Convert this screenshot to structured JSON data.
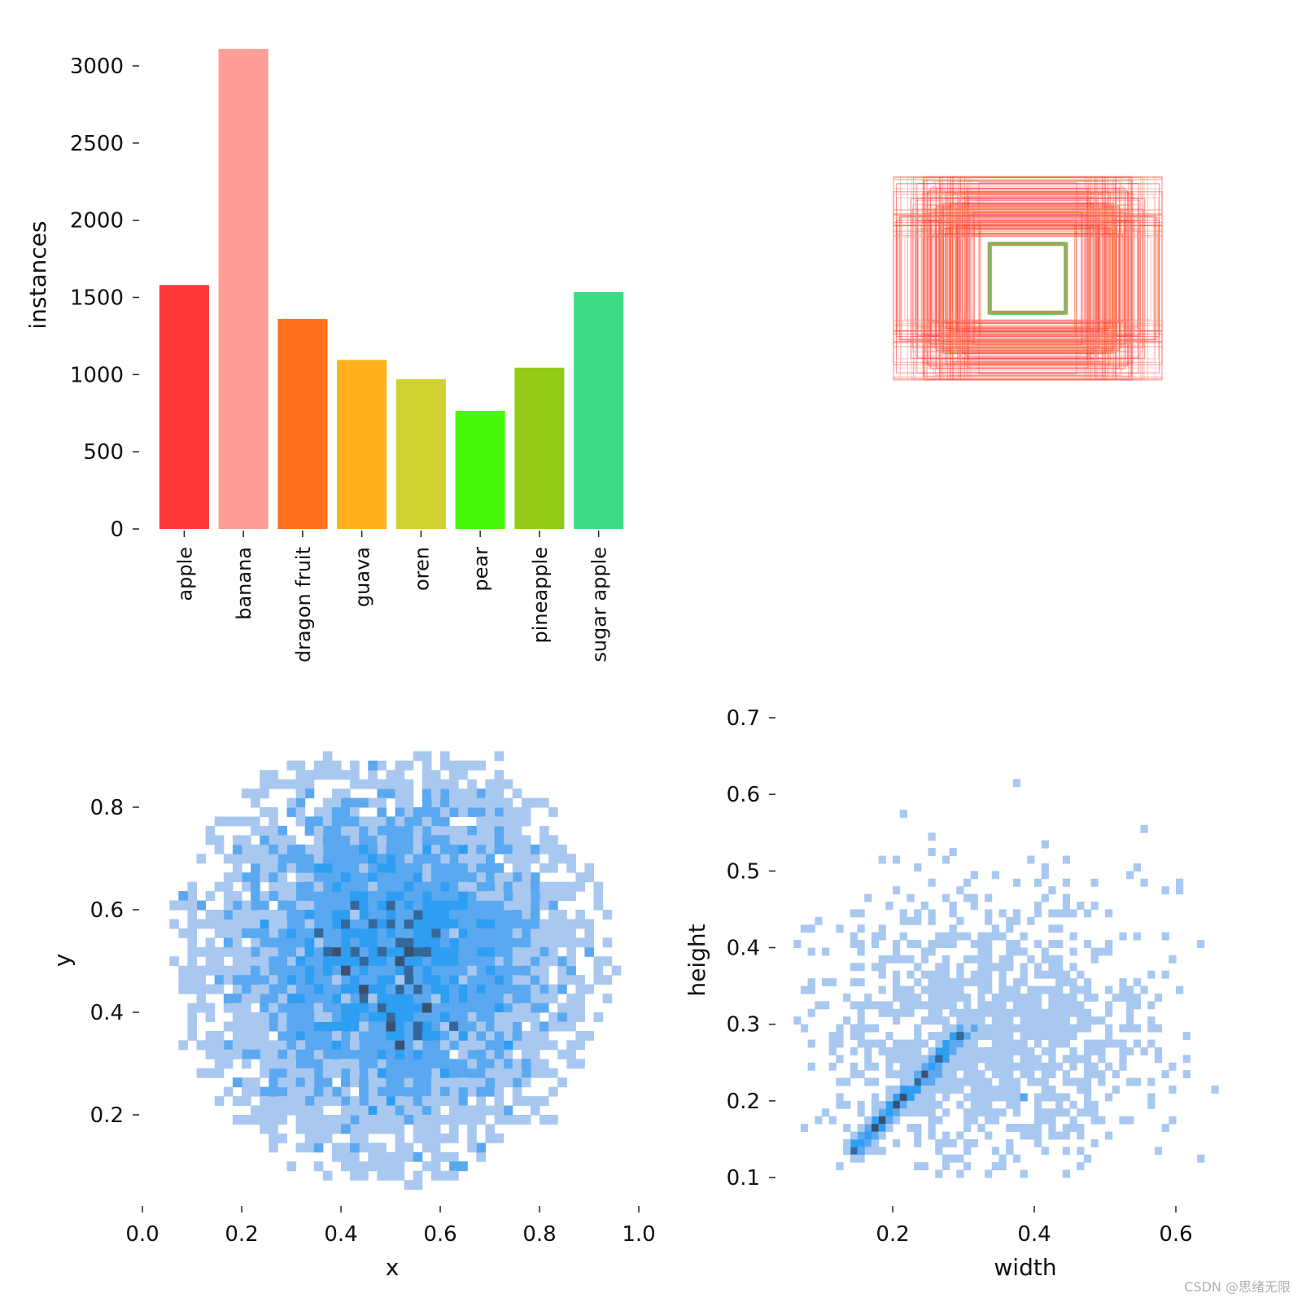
{
  "watermark": "CSDN @思绪无限",
  "chart_data": [
    {
      "type": "bar",
      "ylabel": "instances",
      "ylim": [
        0,
        3100
      ],
      "yticks": [
        0,
        500,
        1000,
        1500,
        2000,
        2500,
        3000
      ],
      "categories": [
        "apple",
        "banana",
        "dragon fruit",
        "guava",
        "oren",
        "pear",
        "pineapple",
        "sugar apple"
      ],
      "values": [
        1580,
        3110,
        1360,
        1095,
        970,
        765,
        1045,
        1535
      ],
      "colors": [
        "#ff3838",
        "#ff9d97",
        "#ff701f",
        "#ffb21d",
        "#cfd231",
        "#48f90a",
        "#92cc17",
        "#3ddb86"
      ]
    },
    {
      "type": "box-overlay",
      "description_colors": [
        "#ff3838",
        "#ff9d97",
        "#ff701f",
        "#3ddb86"
      ]
    },
    {
      "type": "heatmap",
      "xlabel": "x",
      "ylabel": "y",
      "xlim": [
        0.0,
        1.0
      ],
      "ylim": [
        0.05,
        0.9
      ],
      "xticks": [
        "0.0",
        "0.2",
        "0.4",
        "0.6",
        "0.8",
        "1.0"
      ],
      "yticks": [
        "0.2",
        "0.4",
        "0.6",
        "0.8"
      ],
      "center": [
        0.5,
        0.5
      ],
      "colors": [
        "#a3c4f0",
        "#2e9ef2",
        "#33628f",
        "#3b4f6e"
      ]
    },
    {
      "type": "heatmap",
      "xlabel": "width",
      "ylabel": "height",
      "xlim": [
        0.07,
        0.7
      ],
      "ylim": [
        0.1,
        0.7
      ],
      "xticks": [
        "0.2",
        "0.4",
        "0.6"
      ],
      "yticks": [
        "0.1",
        "0.2",
        "0.3",
        "0.4",
        "0.5",
        "0.6",
        "0.7"
      ],
      "colors": [
        "#a3c4f0",
        "#2e9ef2",
        "#33628f",
        "#3b4f6e"
      ]
    }
  ]
}
